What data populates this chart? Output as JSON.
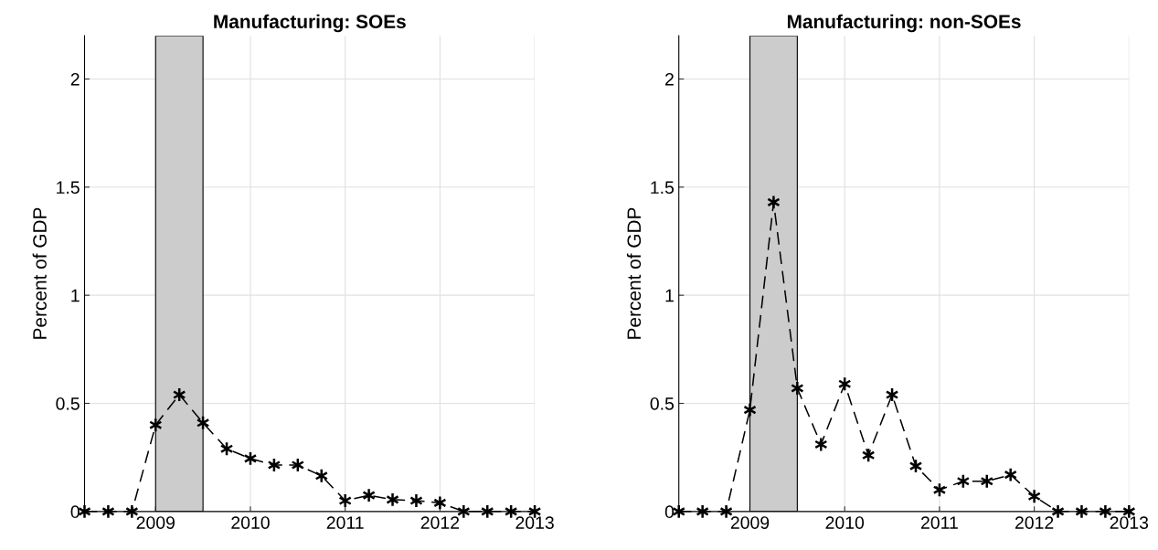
{
  "chart_data": [
    {
      "type": "line",
      "title": "Manufacturing: SOEs",
      "ylabel": "Percent of GDP",
      "x": [
        2008.25,
        2008.5,
        2008.75,
        2009,
        2009.25,
        2009.5,
        2009.75,
        2010,
        2010.25,
        2010.5,
        2010.75,
        2011,
        2011.25,
        2011.5,
        2011.75,
        2012,
        2012.25,
        2012.5,
        2012.75,
        2013
      ],
      "series": [
        {
          "color": "#000000",
          "values": [
            0,
            0,
            0,
            0.4,
            0.54,
            0.41,
            0.29,
            0.245,
            0.215,
            0.215,
            0.165,
            0.05,
            0.075,
            0.055,
            0.05,
            0.04,
            0,
            0,
            0,
            0
          ]
        }
      ],
      "xlim": [
        2008.25,
        2013
      ],
      "xticks": [
        2009,
        2010,
        2011,
        2012,
        2013
      ],
      "ylim": [
        0,
        2.2
      ],
      "yticks": [
        0,
        0.5,
        1,
        1.5,
        2
      ],
      "bands": [
        {
          "axis": "x",
          "from": 2009,
          "to": 2009.5,
          "color": "#cccccc"
        }
      ],
      "grid": true,
      "marker": "cross",
      "line_style": "dashed"
    },
    {
      "type": "line",
      "title": "Manufacturing: non-SOEs",
      "ylabel": "Percent of GDP",
      "x": [
        2008.25,
        2008.5,
        2008.75,
        2009,
        2009.25,
        2009.5,
        2009.75,
        2010,
        2010.25,
        2010.5,
        2010.75,
        2011,
        2011.25,
        2011.5,
        2011.75,
        2012,
        2012.25,
        2012.5,
        2012.75,
        2013
      ],
      "series": [
        {
          "color": "#000000",
          "values": [
            0,
            0,
            0,
            0.47,
            1.43,
            0.57,
            0.31,
            0.59,
            0.26,
            0.54,
            0.21,
            0.1,
            0.14,
            0.14,
            0.17,
            0.07,
            0,
            0,
            0,
            0
          ]
        }
      ],
      "xlim": [
        2008.25,
        2013
      ],
      "xticks": [
        2009,
        2010,
        2011,
        2012,
        2013
      ],
      "ylim": [
        0,
        2.2
      ],
      "yticks": [
        0,
        0.5,
        1,
        1.5,
        2
      ],
      "bands": [
        {
          "axis": "x",
          "from": 2009,
          "to": 2009.5,
          "color": "#cccccc"
        }
      ],
      "grid": true,
      "marker": "cross",
      "line_style": "dashed"
    }
  ]
}
